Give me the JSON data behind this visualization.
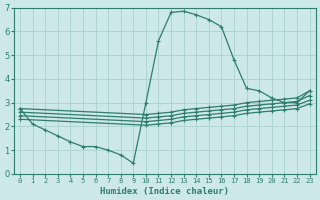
{
  "xlabel": "Humidex (Indice chaleur)",
  "bg_color": "#cce8e8",
  "grid_color": "#b0d4d4",
  "line_color": "#2e7d6e",
  "xlim": [
    -0.5,
    23.5
  ],
  "ylim": [
    0,
    7
  ],
  "xticks": [
    0,
    1,
    2,
    3,
    4,
    5,
    6,
    7,
    8,
    9,
    10,
    11,
    12,
    13,
    14,
    15,
    16,
    17,
    18,
    19,
    20,
    21,
    22,
    23
  ],
  "yticks": [
    0,
    1,
    2,
    3,
    4,
    5,
    6,
    7
  ],
  "lines": [
    {
      "x": [
        0,
        1,
        2,
        3,
        4,
        5,
        6,
        7,
        8,
        9,
        10,
        11,
        12,
        13,
        14,
        15,
        16,
        17,
        18,
        19,
        20,
        21,
        22,
        23
      ],
      "y": [
        2.75,
        2.1,
        1.85,
        1.6,
        1.35,
        1.15,
        1.15,
        1.0,
        0.8,
        0.45,
        3.0,
        5.6,
        6.8,
        6.85,
        6.7,
        6.5,
        6.2,
        4.8,
        3.6,
        3.5,
        3.2,
        3.0,
        3.0,
        3.5
      ]
    },
    {
      "x": [
        0,
        10,
        11,
        12,
        13,
        14,
        15,
        16,
        17,
        18,
        19,
        20,
        21,
        22,
        23
      ],
      "y": [
        2.75,
        2.5,
        2.55,
        2.6,
        2.7,
        2.75,
        2.8,
        2.85,
        2.9,
        3.0,
        3.05,
        3.1,
        3.15,
        3.2,
        3.5
      ]
    },
    {
      "x": [
        0,
        10,
        11,
        12,
        13,
        14,
        15,
        16,
        17,
        18,
        19,
        20,
        21,
        22,
        23
      ],
      "y": [
        2.6,
        2.35,
        2.4,
        2.45,
        2.55,
        2.6,
        2.65,
        2.7,
        2.75,
        2.85,
        2.9,
        2.95,
        3.0,
        3.05,
        3.3
      ]
    },
    {
      "x": [
        0,
        10,
        11,
        12,
        13,
        14,
        15,
        16,
        17,
        18,
        19,
        20,
        21,
        22,
        23
      ],
      "y": [
        2.45,
        2.2,
        2.25,
        2.3,
        2.4,
        2.45,
        2.5,
        2.55,
        2.6,
        2.7,
        2.75,
        2.8,
        2.85,
        2.9,
        3.1
      ]
    },
    {
      "x": [
        0,
        10,
        11,
        12,
        13,
        14,
        15,
        16,
        17,
        18,
        19,
        20,
        21,
        22,
        23
      ],
      "y": [
        2.3,
        2.05,
        2.1,
        2.15,
        2.25,
        2.3,
        2.35,
        2.4,
        2.45,
        2.55,
        2.6,
        2.65,
        2.7,
        2.75,
        2.95
      ]
    }
  ]
}
